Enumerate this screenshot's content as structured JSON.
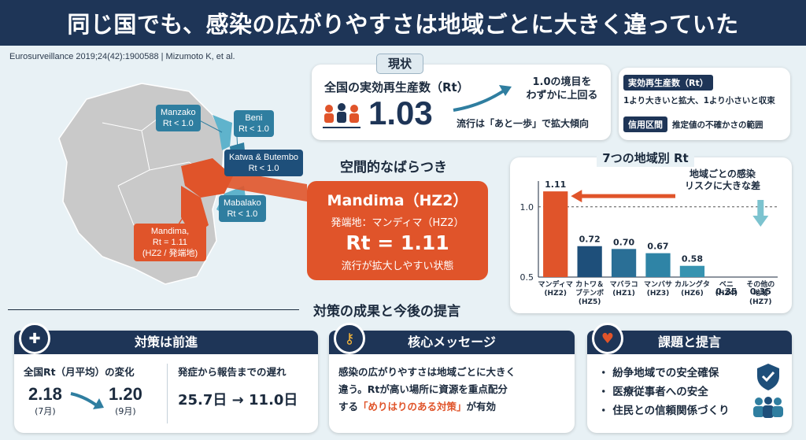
{
  "header": {
    "title": "同じ国でも、感染の広がりやすさは地域ごとに大きく違っていた"
  },
  "citation": "Eurosurveillance 2019;24(42):1900588 | Mizumoto K, et al.",
  "map_labels": {
    "manzako": {
      "name": "Manzako",
      "rt": "Rt < 1.0"
    },
    "beni": {
      "name": "Beni",
      "rt": "Rt < 1.0"
    },
    "katwa": {
      "name": "Katwa & Butembo",
      "rt": "Rt < 1.0"
    },
    "mabalako": {
      "name": "Mabalako",
      "rt": "Rt < 1.0"
    },
    "mandima": {
      "name": "Mandima,",
      "rt": "Rt = 1.11",
      "sub": "(HZ2 / 発端地)"
    }
  },
  "status": {
    "badge": "現状",
    "label": "全国の実効再生産数（Rt）",
    "value": "1.03",
    "above_note_1": "1.0の境目を",
    "above_note_2": "わずかに上回る",
    "trend_note": "流行は「あと一歩」で拡大傾向",
    "def1_tag": "実効再生産数（Rt）",
    "def1_text": "1より大きいと拡大、1より小さいと収束",
    "def2_tag": "信用区間",
    "def2_text": "推定値の不確かさの範囲"
  },
  "spatial_title": "空間的なばらつき",
  "mandima_card": {
    "title": "Mandima（HZ2）",
    "origin": "発端地：マンディマ（HZ2）",
    "rt": "Rt = 1.11",
    "note": "流行が拡大しやすい状態"
  },
  "chart_title": "7つの地域別 Rt",
  "chart_note_1": "地域ごとの感染",
  "chart_note_2": "リスクに大きな差",
  "chart_data": {
    "type": "bar",
    "title": "7つの地域別 Rt",
    "categories": [
      [
        "マンディマ",
        "(HZ2)"
      ],
      [
        "カトワ＆",
        "ブテンボ",
        "(HZ5)"
      ],
      [
        "マバラコ",
        "(HZ1)"
      ],
      [
        "マンバサ",
        "(HZ3)"
      ],
      [
        "カルングタ",
        "(HZ6)"
      ],
      [
        "ベニ",
        "(HZ4)"
      ],
      [
        "その他の",
        "地域",
        "(HZ7)"
      ]
    ],
    "values": [
      1.11,
      0.72,
      0.7,
      0.67,
      0.58,
      0.35,
      0.35
    ],
    "value_labels": [
      "1.11",
      "0.72",
      "0.70",
      "0.67",
      "0.58",
      "0.35",
      "0.35"
    ],
    "ylim": [
      0.5,
      1.15
    ],
    "ticks": [
      "1.0",
      "0.5"
    ],
    "reference_line": 1.0,
    "colors": [
      "#e0542a",
      "#1e4f7a",
      "#2a6f96",
      "#2f84a6",
      "#3793b0",
      "#7cc3cf",
      "#7cc3cf"
    ]
  },
  "bottom_title": "対策の成果と今後の提言",
  "measures": {
    "head": "対策は前進",
    "rt_label": "全国Rt（月平均）の変化",
    "from_val": "2.18",
    "from_month": "(7月)",
    "to_val": "1.20",
    "to_month": "(9月)",
    "delay_label": "発症から報告までの遅れ",
    "delay_value": "25.7日 → 11.0日"
  },
  "message": {
    "head": "核心メッセージ",
    "line1": "感染の広がりやすさは地域ごとに大きく",
    "line2": "違う。Rtが高い場所に資源を重点配分",
    "line3_pre": "する",
    "line3_em": "「めりはりのある対策」",
    "line3_post": "が有効"
  },
  "issues": {
    "head": "課題と提言",
    "items": [
      "・ 紛争地域での安全確保",
      "・ 医療従事者への安全",
      "・ 住民との信頼関係づくり"
    ]
  }
}
